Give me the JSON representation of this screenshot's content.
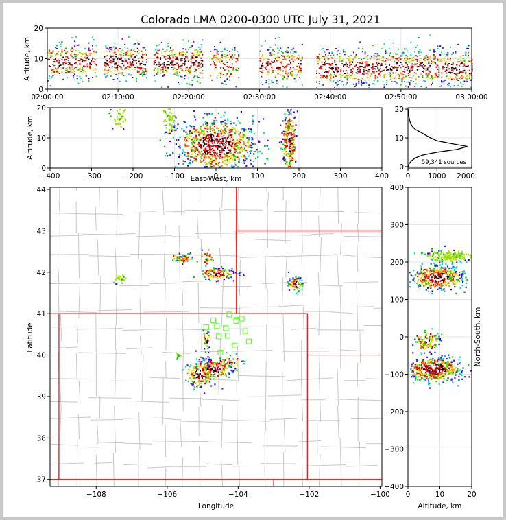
{
  "chart_data": [
    {
      "type": "heatmap",
      "panel": "altitude-vs-time",
      "title": "Colorado LMA 0200-0300 UTC July 31, 2021",
      "xlabel": "",
      "ylabel": "Altitude, km",
      "x_ticks": [
        "02:00:00",
        "02:10:00",
        "02:20:00",
        "02:30:00",
        "02:40:00",
        "02:50:00",
        "03:00:00"
      ],
      "xlim_minutes": [
        0,
        60
      ],
      "y_ticks": [
        0,
        10,
        20
      ],
      "ylim": [
        0,
        20
      ],
      "source_bursts": [
        {
          "t_start": 0.0,
          "t_end": 7.0,
          "alt_center": 9,
          "intensity": 0.75
        },
        {
          "t_start": 8.0,
          "t_end": 14.0,
          "alt_center": 9,
          "intensity": 0.9
        },
        {
          "t_start": 15.0,
          "t_end": 22.0,
          "alt_center": 9,
          "intensity": 0.9
        },
        {
          "t_start": 23.0,
          "t_end": 27.0,
          "alt_center": 8,
          "intensity": 0.55
        },
        {
          "t_start": 30.0,
          "t_end": 36.0,
          "alt_center": 8,
          "intensity": 0.65
        },
        {
          "t_start": 38.0,
          "t_end": 60.0,
          "alt_center": 7,
          "intensity": 0.85
        }
      ]
    },
    {
      "type": "heatmap",
      "panel": "altitude-vs-east-west",
      "xlabel": "East-West, km",
      "ylabel": "Altitude, km",
      "x_ticks": [
        -400,
        -300,
        -200,
        -100,
        0,
        100,
        200,
        300,
        400
      ],
      "xlim": [
        -400,
        400
      ],
      "y_ticks": [
        0,
        10,
        20
      ],
      "ylim": [
        0,
        20
      ],
      "clusters": [
        {
          "x": -235,
          "alt": 17,
          "sx": 10,
          "sa": 2.5,
          "n": 40,
          "hot": 0.2
        },
        {
          "x": -115,
          "alt": 17,
          "sx": 8,
          "sa": 3,
          "n": 55,
          "hot": 0.25
        },
        {
          "x": 0,
          "alt": 8,
          "sx": 45,
          "sa": 4,
          "n": 900,
          "hot": 0.95
        },
        {
          "x": 175,
          "alt": 9,
          "sx": 8,
          "sa": 5,
          "n": 260,
          "hot": 0.85
        }
      ]
    },
    {
      "type": "line",
      "panel": "altitude-histogram",
      "xlabel": "",
      "ylabel": "",
      "x_ticks": [
        0,
        1000,
        2000
      ],
      "xlim": [
        0,
        2200
      ],
      "y_ticks": [
        0,
        10,
        20
      ],
      "ylim": [
        -0.5,
        20.5
      ],
      "annotation": "59,341 sources",
      "counts_by_altitude": [
        {
          "alt": 0,
          "count": 10
        },
        {
          "alt": 1,
          "count": 40
        },
        {
          "alt": 2,
          "count": 120
        },
        {
          "alt": 3,
          "count": 250
        },
        {
          "alt": 4,
          "count": 500
        },
        {
          "alt": 5,
          "count": 1000
        },
        {
          "alt": 6,
          "count": 1700
        },
        {
          "alt": 7,
          "count": 2050
        },
        {
          "alt": 8,
          "count": 1500
        },
        {
          "alt": 9,
          "count": 1000
        },
        {
          "alt": 10,
          "count": 780
        },
        {
          "alt": 11,
          "count": 600
        },
        {
          "alt": 12,
          "count": 430
        },
        {
          "alt": 13,
          "count": 250
        },
        {
          "alt": 14,
          "count": 150
        },
        {
          "alt": 15,
          "count": 90
        },
        {
          "alt": 16,
          "count": 60
        },
        {
          "alt": 17,
          "count": 40
        },
        {
          "alt": 18,
          "count": 20
        },
        {
          "alt": 19,
          "count": 10
        },
        {
          "alt": 20,
          "count": 5
        }
      ]
    },
    {
      "type": "scatter",
      "panel": "plan-view-map",
      "xlabel": "Longitude",
      "ylabel": "Latitude",
      "x_ticks": [
        -108,
        -106,
        -104,
        -102,
        -100
      ],
      "xlim": [
        -109.3,
        -99.95
      ],
      "y_ticks": [
        37,
        38,
        39,
        40,
        41,
        42,
        43,
        44
      ],
      "ylim": [
        36.83,
        44.05
      ],
      "state_borders": [
        {
          "lon": [
            -109.05,
            -102.05,
            -102.05,
            -109.05,
            -109.05
          ],
          "lat": [
            41.0,
            41.0,
            37.0,
            37.0,
            41.0
          ]
        },
        {
          "lon": [
            -104.05,
            -104.05
          ],
          "lat": [
            41.0,
            44.05
          ]
        },
        {
          "lon": [
            -104.05,
            -99.95
          ],
          "lat": [
            43.0,
            43.0
          ]
        },
        {
          "lon": [
            -102.05,
            -99.95
          ],
          "lat": [
            40.0,
            40.0
          ]
        },
        {
          "lon": [
            -102.05,
            -99.95
          ],
          "lat": [
            37.0,
            37.0
          ]
        },
        {
          "lon": [
            -109.3,
            -102.05
          ],
          "lat": [
            41.0,
            41.0
          ]
        },
        {
          "lon": [
            -109.3,
            -109.05
          ],
          "lat": [
            37.0,
            37.0
          ]
        },
        {
          "lon": [
            -103.0,
            -103.0
          ],
          "lat": [
            37.0,
            36.83
          ]
        }
      ],
      "stations": [
        {
          "lon": -104.25,
          "lat": 40.98
        },
        {
          "lon": -104.05,
          "lat": 40.85
        },
        {
          "lon": -103.9,
          "lat": 40.88
        },
        {
          "lon": -104.7,
          "lat": 40.84
        },
        {
          "lon": -104.9,
          "lat": 40.67
        },
        {
          "lon": -104.6,
          "lat": 40.7
        },
        {
          "lon": -104.35,
          "lat": 40.65
        },
        {
          "lon": -103.8,
          "lat": 40.58
        },
        {
          "lon": -104.55,
          "lat": 40.45
        },
        {
          "lon": -104.3,
          "lat": 40.47
        },
        {
          "lon": -103.7,
          "lat": 40.33
        },
        {
          "lon": -104.1,
          "lat": 40.23
        },
        {
          "lon": -104.5,
          "lat": 40.06
        },
        {
          "lon": -104.05,
          "lat": 40.82
        }
      ],
      "clusters": [
        {
          "lon": -105.6,
          "lat": 42.38,
          "slon": 0.15,
          "slat": 0.05,
          "n": 50,
          "hot": 0.5
        },
        {
          "lon": -105.5,
          "lat": 42.33,
          "slon": 0.08,
          "slat": 0.05,
          "n": 25,
          "hot": 0.4
        },
        {
          "lon": -104.9,
          "lat": 42.4,
          "slon": 0.08,
          "slat": 0.1,
          "n": 30,
          "hot": 0.4
        },
        {
          "lon": -107.35,
          "lat": 41.85,
          "slon": 0.12,
          "slat": 0.07,
          "n": 25,
          "hot": 0.2
        },
        {
          "lon": -104.6,
          "lat": 41.98,
          "slon": 0.25,
          "slat": 0.07,
          "n": 130,
          "hot": 0.75
        },
        {
          "lon": -102.4,
          "lat": 41.73,
          "slon": 0.1,
          "slat": 0.08,
          "n": 80,
          "hot": 0.9
        },
        {
          "lon": -104.7,
          "lat": 39.68,
          "slon": 0.25,
          "slat": 0.12,
          "n": 220,
          "hot": 0.9
        },
        {
          "lon": -105.1,
          "lat": 39.55,
          "slon": 0.2,
          "slat": 0.15,
          "n": 160,
          "hot": 0.85
        },
        {
          "lon": -104.9,
          "lat": 40.35,
          "slon": 0.05,
          "slat": 0.12,
          "n": 35,
          "hot": 0.4
        },
        {
          "lon": -104.3,
          "lat": 39.85,
          "slon": 0.2,
          "slat": 0.07,
          "n": 40,
          "hot": 0.4
        },
        {
          "lon": -105.7,
          "lat": 40.0,
          "slon": 0.05,
          "slat": 0.05,
          "n": 12,
          "hot": 0.2
        }
      ]
    },
    {
      "type": "heatmap",
      "panel": "north-south-vs-altitude",
      "xlabel": "Altitude, km",
      "ylabel": "North-South, km",
      "x_ticks": [
        0,
        10,
        20
      ],
      "xlim": [
        0,
        20
      ],
      "y_ticks": [
        -400,
        -300,
        -200,
        -100,
        0,
        100,
        200,
        300,
        400
      ],
      "ylim": [
        -400,
        400
      ],
      "clusters": [
        {
          "alt": 13,
          "y": 218,
          "salt": 4,
          "sy": 8,
          "n": 180,
          "hot": 0.3
        },
        {
          "alt": 9,
          "y": 160,
          "salt": 4,
          "sy": 15,
          "n": 450,
          "hot": 0.9
        },
        {
          "alt": 6,
          "y": -10,
          "salt": 2,
          "sy": 15,
          "n": 120,
          "hot": 0.5
        },
        {
          "alt": 8,
          "y": -85,
          "salt": 4,
          "sy": 15,
          "n": 500,
          "hot": 0.95
        }
      ]
    }
  ]
}
